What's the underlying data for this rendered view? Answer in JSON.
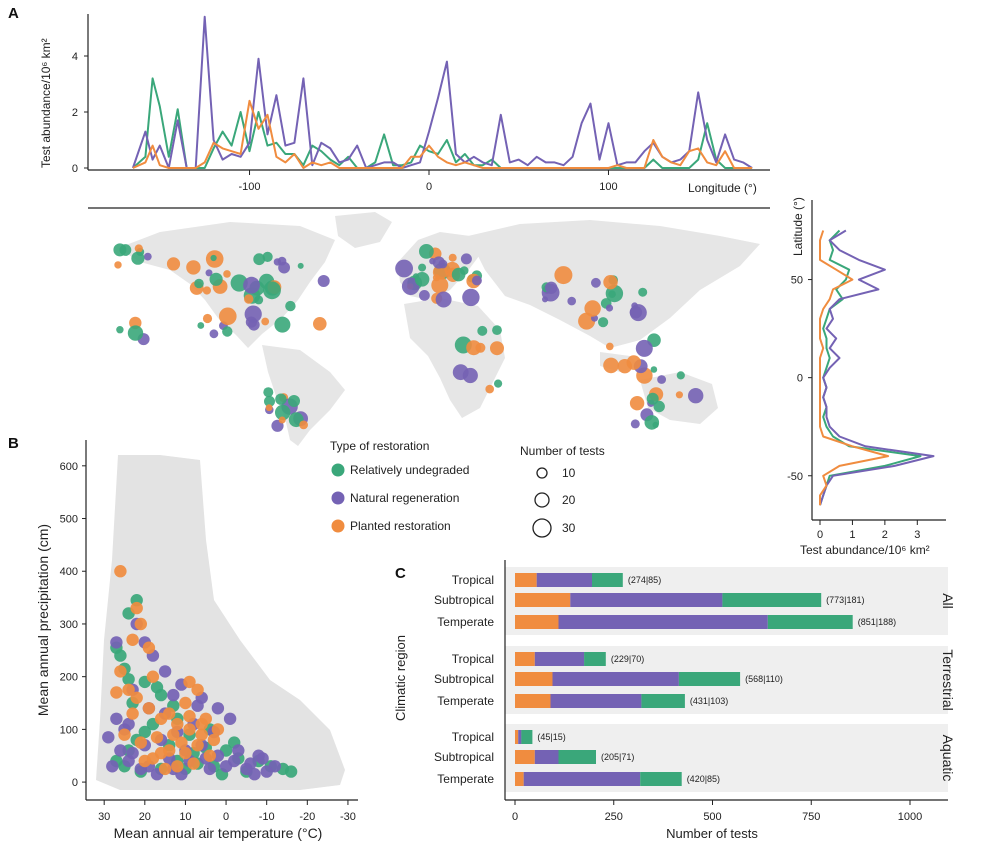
{
  "colors": {
    "undegraded": "#3aa77a",
    "natural": "#7462b4",
    "planted": "#f08c3f",
    "land": "#e6e6e6",
    "strip": "#efefef"
  },
  "panel_labels": {
    "a": "A",
    "b": "B",
    "c": "C"
  },
  "legend": {
    "type_title": "Type of restoration",
    "types": [
      "Relatively undegraded",
      "Natural regeneration",
      "Planted restoration"
    ],
    "size_title": "Number of tests",
    "sizes": [
      "10",
      "20",
      "30"
    ]
  },
  "chart_data": [
    {
      "id": "longitude_profile",
      "type": "line",
      "xlabel": "Longitude (°)",
      "ylabel": "Test abundance/10⁶ km²",
      "x_ticks": [
        "-100",
        "0",
        "100"
      ],
      "y_ticks": [
        "0",
        "2",
        "4"
      ],
      "xlim": [
        -190,
        190
      ],
      "ylim": [
        0,
        5.5
      ],
      "x": [
        -165,
        -158,
        -154,
        -150,
        -145,
        -140,
        -135,
        -130,
        -125,
        -120,
        -115,
        -110,
        -105,
        -100,
        -95,
        -90,
        -85,
        -80,
        -75,
        -70,
        -65,
        -60,
        -55,
        -50,
        -45,
        -40,
        -35,
        -30,
        -25,
        -20,
        -15,
        -10,
        -5,
        0,
        5,
        10,
        15,
        20,
        25,
        30,
        35,
        40,
        45,
        50,
        55,
        60,
        65,
        70,
        75,
        80,
        85,
        90,
        95,
        100,
        105,
        110,
        115,
        120,
        125,
        130,
        135,
        140,
        145,
        150,
        155,
        160,
        165,
        170,
        175,
        180
      ],
      "series": [
        {
          "name": "Relatively undegraded",
          "color_key": "undegraded",
          "values": [
            0,
            0.4,
            3.2,
            2.2,
            0.4,
            2.1,
            0,
            0,
            0,
            0.7,
            1.3,
            0.8,
            2.0,
            0.6,
            2.0,
            0.8,
            0.9,
            0.5,
            0.5,
            0.1,
            0.8,
            0.6,
            0.3,
            0.1,
            0.4,
            0,
            0,
            0.2,
            1.2,
            0.1,
            0.1,
            0.2,
            0.8,
            0.6,
            0.5,
            1.0,
            0.2,
            0.5,
            0.1,
            0.1,
            0.3,
            0,
            0,
            0,
            0,
            0,
            0,
            0,
            0,
            0,
            0,
            0,
            0,
            0,
            0,
            0,
            0,
            0,
            0.3,
            0,
            0,
            0,
            0,
            0.3,
            1.6,
            0.3,
            0,
            0,
            0,
            0
          ]
        },
        {
          "name": "Natural regeneration",
          "color_key": "natural",
          "values": [
            0,
            1.3,
            0.3,
            0.8,
            0,
            1.7,
            0,
            0,
            5.4,
            1.0,
            0.3,
            0.5,
            0.4,
            0.9,
            3.9,
            1.2,
            2.6,
            0.8,
            0.9,
            3.2,
            0.1,
            0.9,
            0.7,
            0.2,
            0.3,
            0.8,
            0,
            0.1,
            0.2,
            0.2,
            0,
            0.1,
            0.2,
            1.3,
            2.5,
            3.8,
            0.5,
            0.2,
            0.4,
            0.2,
            0.1,
            1.9,
            0.2,
            0.3,
            0.1,
            0.4,
            0.2,
            0.2,
            0.1,
            0.4,
            1.6,
            2.3,
            0.3,
            1.6,
            0.1,
            0.2,
            0.2,
            0.6,
            0.9,
            0.4,
            0.2,
            0.3,
            0.6,
            2.7,
            1.0,
            0.2,
            1.2,
            0.3,
            0.2,
            0
          ]
        },
        {
          "name": "Planted restoration",
          "color_key": "planted",
          "values": [
            0,
            0.2,
            0.8,
            0.1,
            0,
            0,
            0,
            0,
            0.2,
            0.9,
            0.7,
            0.6,
            0.5,
            2.4,
            1.4,
            1.9,
            0.4,
            0.2,
            0.5,
            0,
            0.2,
            0.1,
            0.2,
            0,
            0,
            0,
            0,
            0,
            0,
            0,
            0,
            0.4,
            0.4,
            0.8,
            0.4,
            0.2,
            0.1,
            0.2,
            0.1,
            0,
            0,
            0,
            0,
            0,
            0,
            0,
            0,
            0,
            0,
            0,
            0,
            0,
            0,
            0,
            0.1,
            0,
            0,
            0,
            1.0,
            0.4,
            0.2,
            0.1,
            0.6,
            0.7,
            0.2,
            0.1,
            0.6,
            0,
            0,
            0
          ]
        }
      ]
    },
    {
      "id": "latitude_profile",
      "type": "line",
      "xlabel": "Test abundance/10⁶ km²",
      "ylabel": "Latitude (°)",
      "x_ticks": [
        "0",
        "1",
        "2",
        "3"
      ],
      "y_ticks": [
        "50",
        "0",
        "-50"
      ],
      "xlim": [
        0,
        3.7
      ],
      "ylim": [
        -70,
        88
      ],
      "lat": [
        75,
        70,
        65,
        60,
        55,
        50,
        45,
        40,
        35,
        30,
        25,
        20,
        15,
        10,
        5,
        0,
        -5,
        -10,
        -15,
        -20,
        -25,
        -30,
        -35,
        -40,
        -45,
        -50,
        -55,
        -60,
        -65
      ],
      "series": [
        {
          "name": "Relatively undegraded",
          "color_key": "undegraded",
          "values": [
            0.6,
            0.3,
            0.4,
            0.3,
            0.9,
            0.8,
            0.5,
            0.7,
            0.3,
            0.2,
            0.1,
            0.2,
            0.2,
            0.3,
            0.2,
            0.1,
            0.2,
            0.1,
            0.2,
            0.1,
            0.2,
            0.4,
            0.9,
            3.1,
            2.0,
            0.3,
            0.2,
            0.1,
            0
          ]
        },
        {
          "name": "Natural regeneration",
          "color_key": "natural",
          "values": [
            0.8,
            0.3,
            0.6,
            1.2,
            2.0,
            1.2,
            1.8,
            0.6,
            0.3,
            0.4,
            0.2,
            0.5,
            0.3,
            0.6,
            0.3,
            0.1,
            0.2,
            0.1,
            0.2,
            0.2,
            0.3,
            0.6,
            1.4,
            3.5,
            2.3,
            0.4,
            0.2,
            0.1,
            0
          ]
        },
        {
          "name": "Planted restoration",
          "color_key": "planted",
          "values": [
            0.1,
            0,
            0,
            0,
            0.5,
            1.0,
            0.4,
            0.3,
            0.1,
            0,
            0,
            0,
            0.1,
            0,
            0,
            0,
            0,
            0,
            0,
            0,
            0,
            0.1,
            1.0,
            2.1,
            0.6,
            0.1,
            0.2,
            0,
            0
          ]
        }
      ]
    },
    {
      "id": "climate_scatter",
      "type": "scatter",
      "xlabel": "Mean annual air temperature (°C)",
      "ylabel": "Mean annual precipitation (cm)",
      "x_ticks": [
        "30",
        "20",
        "10",
        "0",
        "-10",
        "-20",
        "-30"
      ],
      "y_ticks": [
        "0",
        "100",
        "200",
        "300",
        "400",
        "500",
        "600"
      ],
      "xlim": [
        33,
        -31
      ],
      "ylim": [
        -15,
        630
      ],
      "series": [
        {
          "name": "Relatively undegraded",
          "color_key": "undegraded",
          "points": [
            [
              22,
              345
            ],
            [
              24,
              320
            ],
            [
              27,
              255
            ],
            [
              26,
              240
            ],
            [
              25,
              215
            ],
            [
              24,
              195
            ],
            [
              20,
              190
            ],
            [
              17,
              180
            ],
            [
              16,
              165
            ],
            [
              23,
              150
            ],
            [
              13,
              145
            ],
            [
              12,
              120
            ],
            [
              18,
              110
            ],
            [
              20,
              95
            ],
            [
              22,
              80
            ],
            [
              24,
              60
            ],
            [
              27,
              40
            ],
            [
              25,
              30
            ],
            [
              21,
              20
            ],
            [
              16,
              25
            ],
            [
              12,
              40
            ],
            [
              8,
              55
            ],
            [
              5,
              65
            ],
            [
              0,
              60
            ],
            [
              -3,
              45
            ],
            [
              -8,
              40
            ],
            [
              -11,
              30
            ],
            [
              -14,
              25
            ],
            [
              -16,
              20
            ],
            [
              -2,
              75
            ],
            [
              4,
              100
            ],
            [
              9,
              90
            ],
            [
              14,
              70
            ],
            [
              7,
              35
            ],
            [
              3,
              30
            ],
            [
              -5,
              20
            ],
            [
              1,
              15
            ],
            [
              10,
              25
            ]
          ]
        },
        {
          "name": "Natural regeneration",
          "color_key": "natural",
          "points": [
            [
              27,
              265
            ],
            [
              22,
              300
            ],
            [
              20,
              265
            ],
            [
              18,
              240
            ],
            [
              15,
              210
            ],
            [
              11,
              185
            ],
            [
              6,
              160
            ],
            [
              2,
              140
            ],
            [
              -1,
              120
            ],
            [
              3,
              95
            ],
            [
              8,
              110
            ],
            [
              12,
              95
            ],
            [
              16,
              80
            ],
            [
              20,
              70
            ],
            [
              23,
              55
            ],
            [
              25,
              100
            ],
            [
              27,
              120
            ],
            [
              29,
              85
            ],
            [
              26,
              60
            ],
            [
              24,
              40
            ],
            [
              19,
              30
            ],
            [
              14,
              45
            ],
            [
              10,
              60
            ],
            [
              6,
              70
            ],
            [
              2,
              50
            ],
            [
              -2,
              40
            ],
            [
              -6,
              35
            ],
            [
              -9,
              45
            ],
            [
              -12,
              30
            ],
            [
              -5,
              25
            ],
            [
              0,
              30
            ],
            [
              4,
              25
            ],
            [
              9,
              40
            ],
            [
              13,
              25
            ],
            [
              17,
              15
            ],
            [
              21,
              25
            ],
            [
              11,
              15
            ],
            [
              5,
              45
            ],
            [
              -3,
              60
            ],
            [
              -8,
              50
            ],
            [
              15,
              130
            ],
            [
              19,
              140
            ],
            [
              23,
              175
            ],
            [
              13,
              165
            ],
            [
              7,
              145
            ],
            [
              24,
              110
            ],
            [
              28,
              30
            ],
            [
              -10,
              20
            ],
            [
              -7,
              15
            ]
          ]
        },
        {
          "name": "Planted restoration",
          "color_key": "planted",
          "points": [
            [
              26,
              400
            ],
            [
              22,
              330
            ],
            [
              21,
              300
            ],
            [
              23,
              270
            ],
            [
              19,
              255
            ],
            [
              26,
              210
            ],
            [
              27,
              170
            ],
            [
              24,
              175
            ],
            [
              22,
              160
            ],
            [
              18,
              200
            ],
            [
              9,
              190
            ],
            [
              7,
              175
            ],
            [
              10,
              150
            ],
            [
              14,
              130
            ],
            [
              19,
              140
            ],
            [
              16,
              120
            ],
            [
              12,
              110
            ],
            [
              9,
              100
            ],
            [
              6,
              90
            ],
            [
              3,
              80
            ],
            [
              13,
              90
            ],
            [
              17,
              85
            ],
            [
              21,
              75
            ],
            [
              7,
              70
            ],
            [
              10,
              55
            ],
            [
              14,
              60
            ],
            [
              18,
              45
            ],
            [
              4,
              50
            ],
            [
              8,
              35
            ],
            [
              12,
              30
            ],
            [
              15,
              25
            ],
            [
              20,
              40
            ],
            [
              5,
              120
            ],
            [
              2,
              100
            ],
            [
              11,
              75
            ],
            [
              16,
              55
            ],
            [
              23,
              130
            ],
            [
              25,
              90
            ],
            [
              6,
              110
            ],
            [
              9,
              125
            ]
          ]
        }
      ]
    },
    {
      "id": "tests_by_region",
      "type": "bar",
      "xlabel": "Number of tests",
      "ylabel": "Climatic region",
      "x_ticks": [
        "0",
        "250",
        "500",
        "750",
        "1000"
      ],
      "xlim": [
        0,
        1080
      ],
      "groups": [
        {
          "name": "All",
          "rows": [
            {
              "label": "Tropical",
              "planted": 55,
              "natural": 140,
              "undegraded": 78,
              "annotation": "(274|85)"
            },
            {
              "label": "Subtropical",
              "planted": 140,
              "natural": 385,
              "undegraded": 250,
              "annotation": "(773|181)"
            },
            {
              "label": "Temperate",
              "planted": 110,
              "natural": 530,
              "undegraded": 215,
              "annotation": "(851|188)"
            }
          ]
        },
        {
          "name": "Terrestrial",
          "rows": [
            {
              "label": "Tropical",
              "planted": 50,
              "natural": 125,
              "undegraded": 55,
              "annotation": "(229|70)"
            },
            {
              "label": "Subtropical",
              "planted": 95,
              "natural": 320,
              "undegraded": 155,
              "annotation": "(568|110)"
            },
            {
              "label": "Temperate",
              "planted": 90,
              "natural": 230,
              "undegraded": 110,
              "annotation": "(431|103)"
            }
          ]
        },
        {
          "name": "Aquatic",
          "rows": [
            {
              "label": "Tropical",
              "planted": 8,
              "natural": 8,
              "undegraded": 28,
              "annotation": "(45|15)"
            },
            {
              "label": "Subtropical",
              "planted": 50,
              "natural": 60,
              "undegraded": 95,
              "annotation": "(205|71)"
            },
            {
              "label": "Temperate",
              "planted": 22,
              "natural": 295,
              "undegraded": 105,
              "annotation": "(420|85)"
            }
          ]
        }
      ]
    }
  ]
}
